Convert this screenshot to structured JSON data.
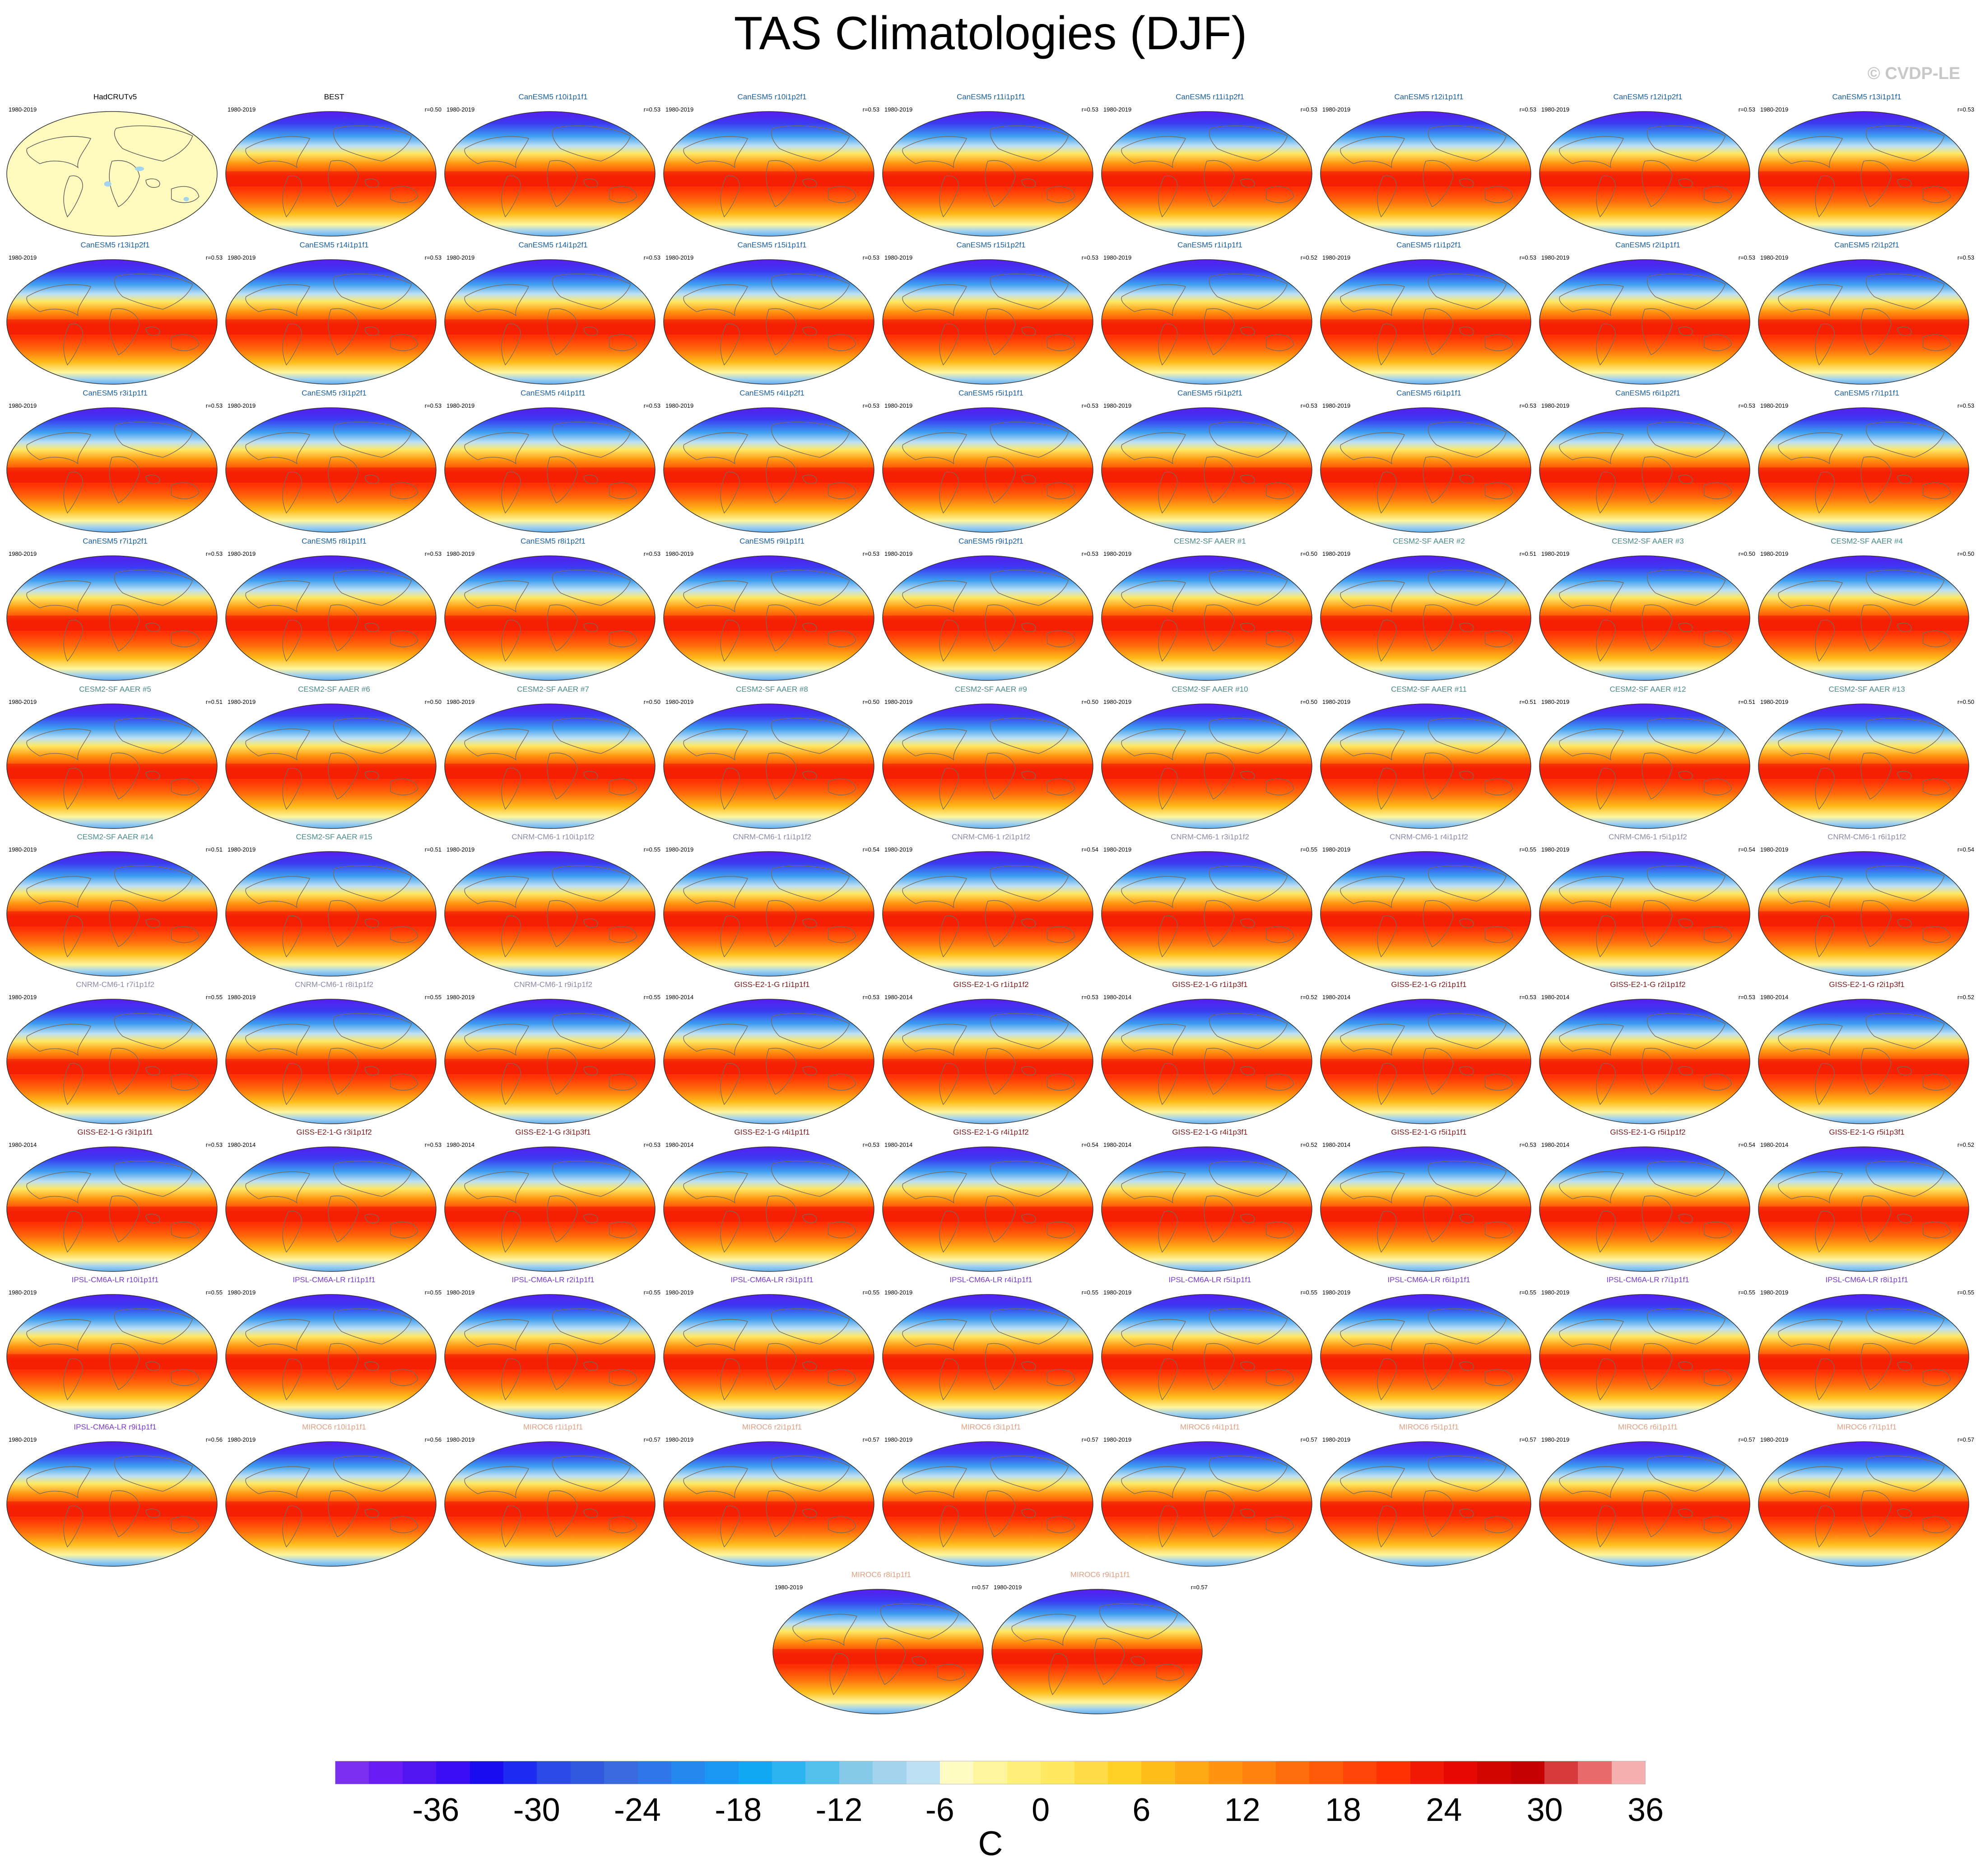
{
  "title": "TAS Climatologies (DJF)",
  "copyright": "© CVDP-LE",
  "colorbar": {
    "units": "C",
    "ticks": [
      "-36",
      "-30",
      "-24",
      "-18",
      "-12",
      "-6",
      "0",
      "6",
      "12",
      "18",
      "24",
      "30",
      "36"
    ],
    "colors": [
      "#7b2ff0",
      "#6a1cf5",
      "#5314f2",
      "#3a0ef5",
      "#1a0cf0",
      "#1f2bf0",
      "#2a49e6",
      "#3159dd",
      "#3a6bde",
      "#2f76ea",
      "#2787f0",
      "#1a97f2",
      "#11a8f3",
      "#2ab4f0",
      "#55c0ec",
      "#85cbe9",
      "#a3d4ee",
      "#bde0f4",
      "#fffbc2",
      "#fff59c",
      "#fff07a",
      "#ffe862",
      "#ffdc45",
      "#ffd026",
      "#ffbd1c",
      "#ffaa14",
      "#ff9510",
      "#ff810e",
      "#ff6d0c",
      "#ff590a",
      "#ff4508",
      "#ff3206",
      "#f21a04",
      "#e60a02",
      "#d30500",
      "#c50000",
      "#d63a3a",
      "#e86a6a",
      "#f7b0b0"
    ]
  },
  "panels": [
    {
      "title": "HadCRUTv5",
      "period": "1980-2019",
      "r": "",
      "style": "obs",
      "color": "#000000"
    },
    {
      "title": "BEST",
      "period": "1980-2019",
      "r": "r=0.50",
      "style": "full",
      "color": "#000000"
    },
    {
      "title": "CanESM5 r10i1p1f1",
      "period": "1980-2019",
      "r": "r=0.53",
      "style": "full",
      "color": "#1a5fa0"
    },
    {
      "title": "CanESM5 r10i1p2f1",
      "period": "1980-2019",
      "r": "r=0.53",
      "style": "full",
      "color": "#1a5fa0"
    },
    {
      "title": "CanESM5 r11i1p1f1",
      "period": "1980-2019",
      "r": "r=0.53",
      "style": "full",
      "color": "#1a5fa0"
    },
    {
      "title": "CanESM5 r11i1p2f1",
      "period": "1980-2019",
      "r": "r=0.53",
      "style": "full",
      "color": "#1a5fa0"
    },
    {
      "title": "CanESM5 r12i1p1f1",
      "period": "1980-2019",
      "r": "r=0.53",
      "style": "full",
      "color": "#1a5fa0"
    },
    {
      "title": "CanESM5 r12i1p2f1",
      "period": "1980-2019",
      "r": "r=0.53",
      "style": "full",
      "color": "#1a5fa0"
    },
    {
      "title": "CanESM5 r13i1p1f1",
      "period": "1980-2019",
      "r": "r=0.53",
      "style": "full",
      "color": "#1a5fa0"
    },
    {
      "title": "CanESM5 r13i1p2f1",
      "period": "1980-2019",
      "r": "r=0.53",
      "style": "full",
      "color": "#1a5fa0"
    },
    {
      "title": "CanESM5 r14i1p1f1",
      "period": "1980-2019",
      "r": "r=0.53",
      "style": "full",
      "color": "#1a5fa0"
    },
    {
      "title": "CanESM5 r14i1p2f1",
      "period": "1980-2019",
      "r": "r=0.53",
      "style": "full",
      "color": "#1a5fa0"
    },
    {
      "title": "CanESM5 r15i1p1f1",
      "period": "1980-2019",
      "r": "r=0.53",
      "style": "full",
      "color": "#1a5fa0"
    },
    {
      "title": "CanESM5 r15i1p2f1",
      "period": "1980-2019",
      "r": "r=0.53",
      "style": "full",
      "color": "#1a5fa0"
    },
    {
      "title": "CanESM5 r1i1p1f1",
      "period": "1980-2019",
      "r": "r=0.52",
      "style": "full",
      "color": "#1a5fa0"
    },
    {
      "title": "CanESM5 r1i1p2f1",
      "period": "1980-2019",
      "r": "r=0.53",
      "style": "full",
      "color": "#1a5fa0"
    },
    {
      "title": "CanESM5 r2i1p1f1",
      "period": "1980-2019",
      "r": "r=0.53",
      "style": "full",
      "color": "#1a5fa0"
    },
    {
      "title": "CanESM5 r2i1p2f1",
      "period": "1980-2019",
      "r": "r=0.53",
      "style": "full",
      "color": "#1a5fa0"
    },
    {
      "title": "CanESM5 r3i1p1f1",
      "period": "1980-2019",
      "r": "r=0.53",
      "style": "full",
      "color": "#1a5fa0"
    },
    {
      "title": "CanESM5 r3i1p2f1",
      "period": "1980-2019",
      "r": "r=0.53",
      "style": "full",
      "color": "#1a5fa0"
    },
    {
      "title": "CanESM5 r4i1p1f1",
      "period": "1980-2019",
      "r": "r=0.53",
      "style": "full",
      "color": "#1a5fa0"
    },
    {
      "title": "CanESM5 r4i1p2f1",
      "period": "1980-2019",
      "r": "r=0.53",
      "style": "full",
      "color": "#1a5fa0"
    },
    {
      "title": "CanESM5 r5i1p1f1",
      "period": "1980-2019",
      "r": "r=0.53",
      "style": "full",
      "color": "#1a5fa0"
    },
    {
      "title": "CanESM5 r5i1p2f1",
      "period": "1980-2019",
      "r": "r=0.53",
      "style": "full",
      "color": "#1a5fa0"
    },
    {
      "title": "CanESM5 r6i1p1f1",
      "period": "1980-2019",
      "r": "r=0.53",
      "style": "full",
      "color": "#1a5fa0"
    },
    {
      "title": "CanESM5 r6i1p2f1",
      "period": "1980-2019",
      "r": "r=0.53",
      "style": "full",
      "color": "#1a5fa0"
    },
    {
      "title": "CanESM5 r7i1p1f1",
      "period": "1980-2019",
      "r": "r=0.53",
      "style": "full",
      "color": "#1a5fa0"
    },
    {
      "title": "CanESM5 r7i1p2f1",
      "period": "1980-2019",
      "r": "r=0.53",
      "style": "full",
      "color": "#1a5fa0"
    },
    {
      "title": "CanESM5 r8i1p1f1",
      "period": "1980-2019",
      "r": "r=0.53",
      "style": "full",
      "color": "#1a5fa0"
    },
    {
      "title": "CanESM5 r8i1p2f1",
      "period": "1980-2019",
      "r": "r=0.53",
      "style": "full",
      "color": "#1a5fa0"
    },
    {
      "title": "CanESM5 r9i1p1f1",
      "period": "1980-2019",
      "r": "r=0.53",
      "style": "full",
      "color": "#1a5fa0"
    },
    {
      "title": "CanESM5 r9i1p2f1",
      "period": "1980-2019",
      "r": "r=0.53",
      "style": "full",
      "color": "#1a5fa0"
    },
    {
      "title": "CESM2-SF AAER #1",
      "period": "1980-2019",
      "r": "r=0.50",
      "style": "full",
      "color": "#4a8a8a"
    },
    {
      "title": "CESM2-SF AAER #2",
      "period": "1980-2019",
      "r": "r=0.51",
      "style": "full",
      "color": "#4a8a8a"
    },
    {
      "title": "CESM2-SF AAER #3",
      "period": "1980-2019",
      "r": "r=0.50",
      "style": "full",
      "color": "#4a8a8a"
    },
    {
      "title": "CESM2-SF AAER #4",
      "period": "1980-2019",
      "r": "r=0.50",
      "style": "full",
      "color": "#4a8a8a"
    },
    {
      "title": "CESM2-SF AAER #5",
      "period": "1980-2019",
      "r": "r=0.51",
      "style": "full",
      "color": "#4a8a8a"
    },
    {
      "title": "CESM2-SF AAER #6",
      "period": "1980-2019",
      "r": "r=0.50",
      "style": "full",
      "color": "#4a8a8a"
    },
    {
      "title": "CESM2-SF AAER #7",
      "period": "1980-2019",
      "r": "r=0.50",
      "style": "full",
      "color": "#4a8a8a"
    },
    {
      "title": "CESM2-SF AAER #8",
      "period": "1980-2019",
      "r": "r=0.50",
      "style": "full",
      "color": "#4a8a8a"
    },
    {
      "title": "CESM2-SF AAER #9",
      "period": "1980-2019",
      "r": "r=0.50",
      "style": "full",
      "color": "#4a8a8a"
    },
    {
      "title": "CESM2-SF AAER #10",
      "period": "1980-2019",
      "r": "r=0.50",
      "style": "full",
      "color": "#4a8a8a"
    },
    {
      "title": "CESM2-SF AAER #11",
      "period": "1980-2019",
      "r": "r=0.51",
      "style": "full",
      "color": "#4a8a8a"
    },
    {
      "title": "CESM2-SF AAER #12",
      "period": "1980-2019",
      "r": "r=0.51",
      "style": "full",
      "color": "#4a8a8a"
    },
    {
      "title": "CESM2-SF AAER #13",
      "period": "1980-2019",
      "r": "r=0.50",
      "style": "full",
      "color": "#4a8a8a"
    },
    {
      "title": "CESM2-SF AAER #14",
      "period": "1980-2019",
      "r": "r=0.51",
      "style": "full",
      "color": "#4a8a8a"
    },
    {
      "title": "CESM2-SF AAER #15",
      "period": "1980-2019",
      "r": "r=0.51",
      "style": "full",
      "color": "#4a8a8a"
    },
    {
      "title": "CNRM-CM6-1 r10i1p1f2",
      "period": "1980-2019",
      "r": "r=0.55",
      "style": "full",
      "color": "#8a8aa8"
    },
    {
      "title": "CNRM-CM6-1 r1i1p1f2",
      "period": "1980-2019",
      "r": "r=0.54",
      "style": "full",
      "color": "#8a8aa8"
    },
    {
      "title": "CNRM-CM6-1 r2i1p1f2",
      "period": "1980-2019",
      "r": "r=0.54",
      "style": "full",
      "color": "#8a8aa8"
    },
    {
      "title": "CNRM-CM6-1 r3i1p1f2",
      "period": "1980-2019",
      "r": "r=0.55",
      "style": "full",
      "color": "#8a8aa8"
    },
    {
      "title": "CNRM-CM6-1 r4i1p1f2",
      "period": "1980-2019",
      "r": "r=0.55",
      "style": "full",
      "color": "#8a8aa8"
    },
    {
      "title": "CNRM-CM6-1 r5i1p1f2",
      "period": "1980-2019",
      "r": "r=0.54",
      "style": "full",
      "color": "#8a8aa8"
    },
    {
      "title": "CNRM-CM6-1 r6i1p1f2",
      "period": "1980-2019",
      "r": "r=0.54",
      "style": "full",
      "color": "#8a8aa8"
    },
    {
      "title": "CNRM-CM6-1 r7i1p1f2",
      "period": "1980-2019",
      "r": "r=0.55",
      "style": "full",
      "color": "#8a8aa8"
    },
    {
      "title": "CNRM-CM6-1 r8i1p1f2",
      "period": "1980-2019",
      "r": "r=0.55",
      "style": "full",
      "color": "#8a8aa8"
    },
    {
      "title": "CNRM-CM6-1 r9i1p1f2",
      "period": "1980-2019",
      "r": "r=0.55",
      "style": "full",
      "color": "#8a8aa8"
    },
    {
      "title": "GISS-E2-1-G r1i1p1f1",
      "period": "1980-2014",
      "r": "r=0.53",
      "style": "full",
      "color": "#7a1a1a"
    },
    {
      "title": "GISS-E2-1-G r1i1p1f2",
      "period": "1980-2014",
      "r": "r=0.53",
      "style": "full",
      "color": "#7a1a1a"
    },
    {
      "title": "GISS-E2-1-G r1i1p3f1",
      "period": "1980-2014",
      "r": "r=0.52",
      "style": "full",
      "color": "#7a1a1a"
    },
    {
      "title": "GISS-E2-1-G r2i1p1f1",
      "period": "1980-2014",
      "r": "r=0.53",
      "style": "full",
      "color": "#7a1a1a"
    },
    {
      "title": "GISS-E2-1-G r2i1p1f2",
      "period": "1980-2014",
      "r": "r=0.53",
      "style": "full",
      "color": "#7a1a1a"
    },
    {
      "title": "GISS-E2-1-G r2i1p3f1",
      "period": "1980-2014",
      "r": "r=0.52",
      "style": "full",
      "color": "#7a1a1a"
    },
    {
      "title": "GISS-E2-1-G r3i1p1f1",
      "period": "1980-2014",
      "r": "r=0.53",
      "style": "full",
      "color": "#7a1a1a"
    },
    {
      "title": "GISS-E2-1-G r3i1p1f2",
      "period": "1980-2014",
      "r": "r=0.53",
      "style": "full",
      "color": "#7a1a1a"
    },
    {
      "title": "GISS-E2-1-G r3i1p3f1",
      "period": "1980-2014",
      "r": "r=0.53",
      "style": "full",
      "color": "#7a1a1a"
    },
    {
      "title": "GISS-E2-1-G r4i1p1f1",
      "period": "1980-2014",
      "r": "r=0.53",
      "style": "full",
      "color": "#7a1a1a"
    },
    {
      "title": "GISS-E2-1-G r4i1p1f2",
      "period": "1980-2014",
      "r": "r=0.54",
      "style": "full",
      "color": "#7a1a1a"
    },
    {
      "title": "GISS-E2-1-G r4i1p3f1",
      "period": "1980-2014",
      "r": "r=0.52",
      "style": "full",
      "color": "#7a1a1a"
    },
    {
      "title": "GISS-E2-1-G r5i1p1f1",
      "period": "1980-2014",
      "r": "r=0.53",
      "style": "full",
      "color": "#7a1a1a"
    },
    {
      "title": "GISS-E2-1-G r5i1p1f2",
      "period": "1980-2014",
      "r": "r=0.54",
      "style": "full",
      "color": "#7a1a1a"
    },
    {
      "title": "GISS-E2-1-G r5i1p3f1",
      "period": "1980-2014",
      "r": "r=0.52",
      "style": "full",
      "color": "#7a1a1a"
    },
    {
      "title": "IPSL-CM6A-LR r10i1p1f1",
      "period": "1980-2019",
      "r": "r=0.55",
      "style": "full",
      "color": "#7a3ad0"
    },
    {
      "title": "IPSL-CM6A-LR r1i1p1f1",
      "period": "1980-2019",
      "r": "r=0.55",
      "style": "full",
      "color": "#7a3ad0"
    },
    {
      "title": "IPSL-CM6A-LR r2i1p1f1",
      "period": "1980-2019",
      "r": "r=0.55",
      "style": "full",
      "color": "#7a3ad0"
    },
    {
      "title": "IPSL-CM6A-LR r3i1p1f1",
      "period": "1980-2019",
      "r": "r=0.55",
      "style": "full",
      "color": "#7a3ad0"
    },
    {
      "title": "IPSL-CM6A-LR r4i1p1f1",
      "period": "1980-2019",
      "r": "r=0.55",
      "style": "full",
      "color": "#7a3ad0"
    },
    {
      "title": "IPSL-CM6A-LR r5i1p1f1",
      "period": "1980-2019",
      "r": "r=0.55",
      "style": "full",
      "color": "#7a3ad0"
    },
    {
      "title": "IPSL-CM6A-LR r6i1p1f1",
      "period": "1980-2019",
      "r": "r=0.55",
      "style": "full",
      "color": "#7a3ad0"
    },
    {
      "title": "IPSL-CM6A-LR r7i1p1f1",
      "period": "1980-2019",
      "r": "r=0.55",
      "style": "full",
      "color": "#7a3ad0"
    },
    {
      "title": "IPSL-CM6A-LR r8i1p1f1",
      "period": "1980-2019",
      "r": "r=0.55",
      "style": "full",
      "color": "#7a3ad0"
    },
    {
      "title": "IPSL-CM6A-LR r9i1p1f1",
      "period": "1980-2019",
      "r": "r=0.56",
      "style": "full",
      "color": "#7a3ad0"
    },
    {
      "title": "MIROC6 r10i1p1f1",
      "period": "1980-2019",
      "r": "r=0.56",
      "style": "full",
      "color": "#e0a080"
    },
    {
      "title": "MIROC6 r1i1p1f1",
      "period": "1980-2019",
      "r": "r=0.57",
      "style": "full",
      "color": "#e0a080"
    },
    {
      "title": "MIROC6 r2i1p1f1",
      "period": "1980-2019",
      "r": "r=0.57",
      "style": "full",
      "color": "#e0a080"
    },
    {
      "title": "MIROC6 r3i1p1f1",
      "period": "1980-2019",
      "r": "r=0.57",
      "style": "full",
      "color": "#e0a080"
    },
    {
      "title": "MIROC6 r4i1p1f1",
      "period": "1980-2019",
      "r": "r=0.57",
      "style": "full",
      "color": "#e0a080"
    },
    {
      "title": "MIROC6 r5i1p1f1",
      "period": "1980-2019",
      "r": "r=0.57",
      "style": "full",
      "color": "#e0a080"
    },
    {
      "title": "MIROC6 r6i1p1f1",
      "period": "1980-2019",
      "r": "r=0.57",
      "style": "full",
      "color": "#e0a080"
    },
    {
      "title": "MIROC6 r7i1p1f1",
      "period": "1980-2019",
      "r": "r=0.57",
      "style": "full",
      "color": "#e0a080"
    },
    {
      "title": "MIROC6 r8i1p1f1",
      "period": "1980-2019",
      "r": "r=0.57",
      "style": "full",
      "color": "#e0a080"
    },
    {
      "title": "MIROC6 r9i1p1f1",
      "period": "1980-2019",
      "r": "r=0.57",
      "style": "full",
      "color": "#e0a080"
    }
  ]
}
